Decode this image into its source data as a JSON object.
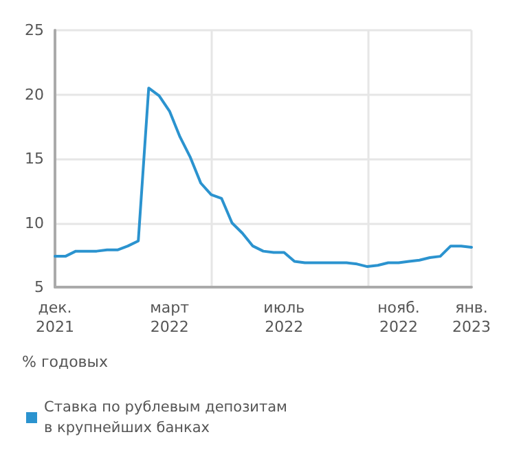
{
  "chart_data": {
    "type": "line",
    "ylabel": "% годовых",
    "categories": [
      "дек. 2021",
      null,
      null,
      null,
      null,
      null,
      null,
      null,
      null,
      null,
      null,
      "март 2022",
      null,
      null,
      null,
      null,
      null,
      null,
      null,
      null,
      null,
      null,
      "июль 2022",
      null,
      null,
      null,
      null,
      null,
      null,
      null,
      null,
      null,
      null,
      "нояб. 2022",
      null,
      null,
      null,
      null,
      null,
      null,
      "янв. 2023"
    ],
    "series": [
      {
        "name": "Ставка по рублевым депозитам в крупнейших банках",
        "color": "#2b93cf",
        "values": [
          7.4,
          7.4,
          7.8,
          7.8,
          7.8,
          7.9,
          7.9,
          8.2,
          8.6,
          20.5,
          19.9,
          18.7,
          16.7,
          15.1,
          13.1,
          12.2,
          11.9,
          10.0,
          9.2,
          8.2,
          7.8,
          7.7,
          7.7,
          7.0,
          6.9,
          6.9,
          6.9,
          6.9,
          6.9,
          6.8,
          6.6,
          6.7,
          6.9,
          6.9,
          7.0,
          7.1,
          7.3,
          7.4,
          8.2,
          8.2,
          8.1
        ]
      }
    ],
    "ylim": [
      5,
      25
    ],
    "yticks": [
      5,
      10,
      15,
      20,
      25
    ],
    "grid": true,
    "legend": "bottom left",
    "marker": "none",
    "line_style": "solid"
  }
}
